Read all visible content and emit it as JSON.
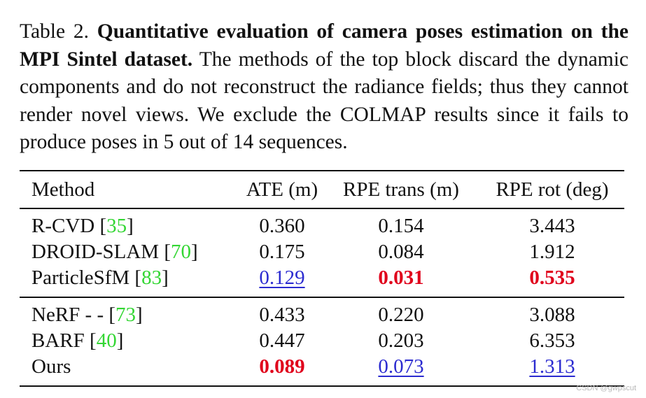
{
  "caption": {
    "label": "Table 2.",
    "bold": "Quantitative evaluation of camera poses estimation on the MPI Sintel dataset.",
    "text": "The methods of the top block discard the dynamic components and do not reconstruct the radiance fields; thus they cannot render novel views.  We exclude the COLMAP results since it fails to produce poses in 5 out of 14 sequences."
  },
  "headers": [
    "Method",
    "ATE (m)",
    "RPE trans (m)",
    "RPE rot (deg)"
  ],
  "rows": [
    {
      "method": "R-CVD",
      "ref": "35",
      "ate": "0.360",
      "trans": "0.154",
      "rot": "3.443"
    },
    {
      "method": "DROID-SLAM",
      "ref": "70",
      "ate": "0.175",
      "trans": "0.084",
      "rot": "1.912"
    },
    {
      "method": "ParticleSfM",
      "ref": "83",
      "ate": "0.129",
      "trans": "0.031",
      "rot": "0.535"
    },
    {
      "method": "NeRF - -",
      "ref": "73",
      "ate": "0.433",
      "trans": "0.220",
      "rot": "3.088"
    },
    {
      "method": "BARF",
      "ref": "40",
      "ate": "0.447",
      "trans": "0.203",
      "rot": "6.353"
    },
    {
      "method": "Ours",
      "ref": "",
      "ate": "0.089",
      "trans": "0.073",
      "rot": "1.313"
    }
  ],
  "watermark": "CSDN @gwpscut",
  "colors": {
    "best": "#e0001b",
    "second": "#2b2bd0",
    "citation": "#33d633"
  }
}
